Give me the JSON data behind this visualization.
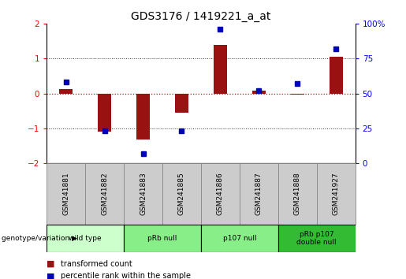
{
  "title": "GDS3176 / 1419221_a_at",
  "samples": [
    "GSM241881",
    "GSM241882",
    "GSM241883",
    "GSM241885",
    "GSM241886",
    "GSM241887",
    "GSM241888",
    "GSM241927"
  ],
  "transformed_count": [
    0.12,
    -1.1,
    -1.32,
    -0.55,
    1.4,
    0.08,
    -0.04,
    1.05
  ],
  "percentile_rank": [
    58,
    23,
    7,
    23,
    96,
    52,
    57,
    82
  ],
  "ylim_left": [
    -2,
    2
  ],
  "ylim_right": [
    0,
    100
  ],
  "yticks_left": [
    -2,
    -1,
    0,
    1,
    2
  ],
  "yticks_right": [
    0,
    25,
    50,
    75,
    100
  ],
  "ytick_right_labels": [
    "0",
    "25",
    "50",
    "75",
    "100%"
  ],
  "bar_color": "#991111",
  "dot_color": "#0000bb",
  "zero_line_color": "#cc0000",
  "dotted_line_color": "#333333",
  "sample_box_color": "#cccccc",
  "sample_box_edge": "#888888",
  "bg_color": "#ffffff",
  "group_spans": [
    {
      "label": "wild type",
      "start": 0,
      "end": 1,
      "color": "#ccffcc"
    },
    {
      "label": "pRb null",
      "start": 2,
      "end": 3,
      "color": "#88ee88"
    },
    {
      "label": "p107 null",
      "start": 4,
      "end": 5,
      "color": "#88ee88"
    },
    {
      "label": "pRb p107\ndouble null",
      "start": 6,
      "end": 7,
      "color": "#33bb33"
    }
  ],
  "legend_red_label": "transformed count",
  "legend_blue_label": "percentile rank within the sample",
  "genotype_label": "genotype/variation"
}
